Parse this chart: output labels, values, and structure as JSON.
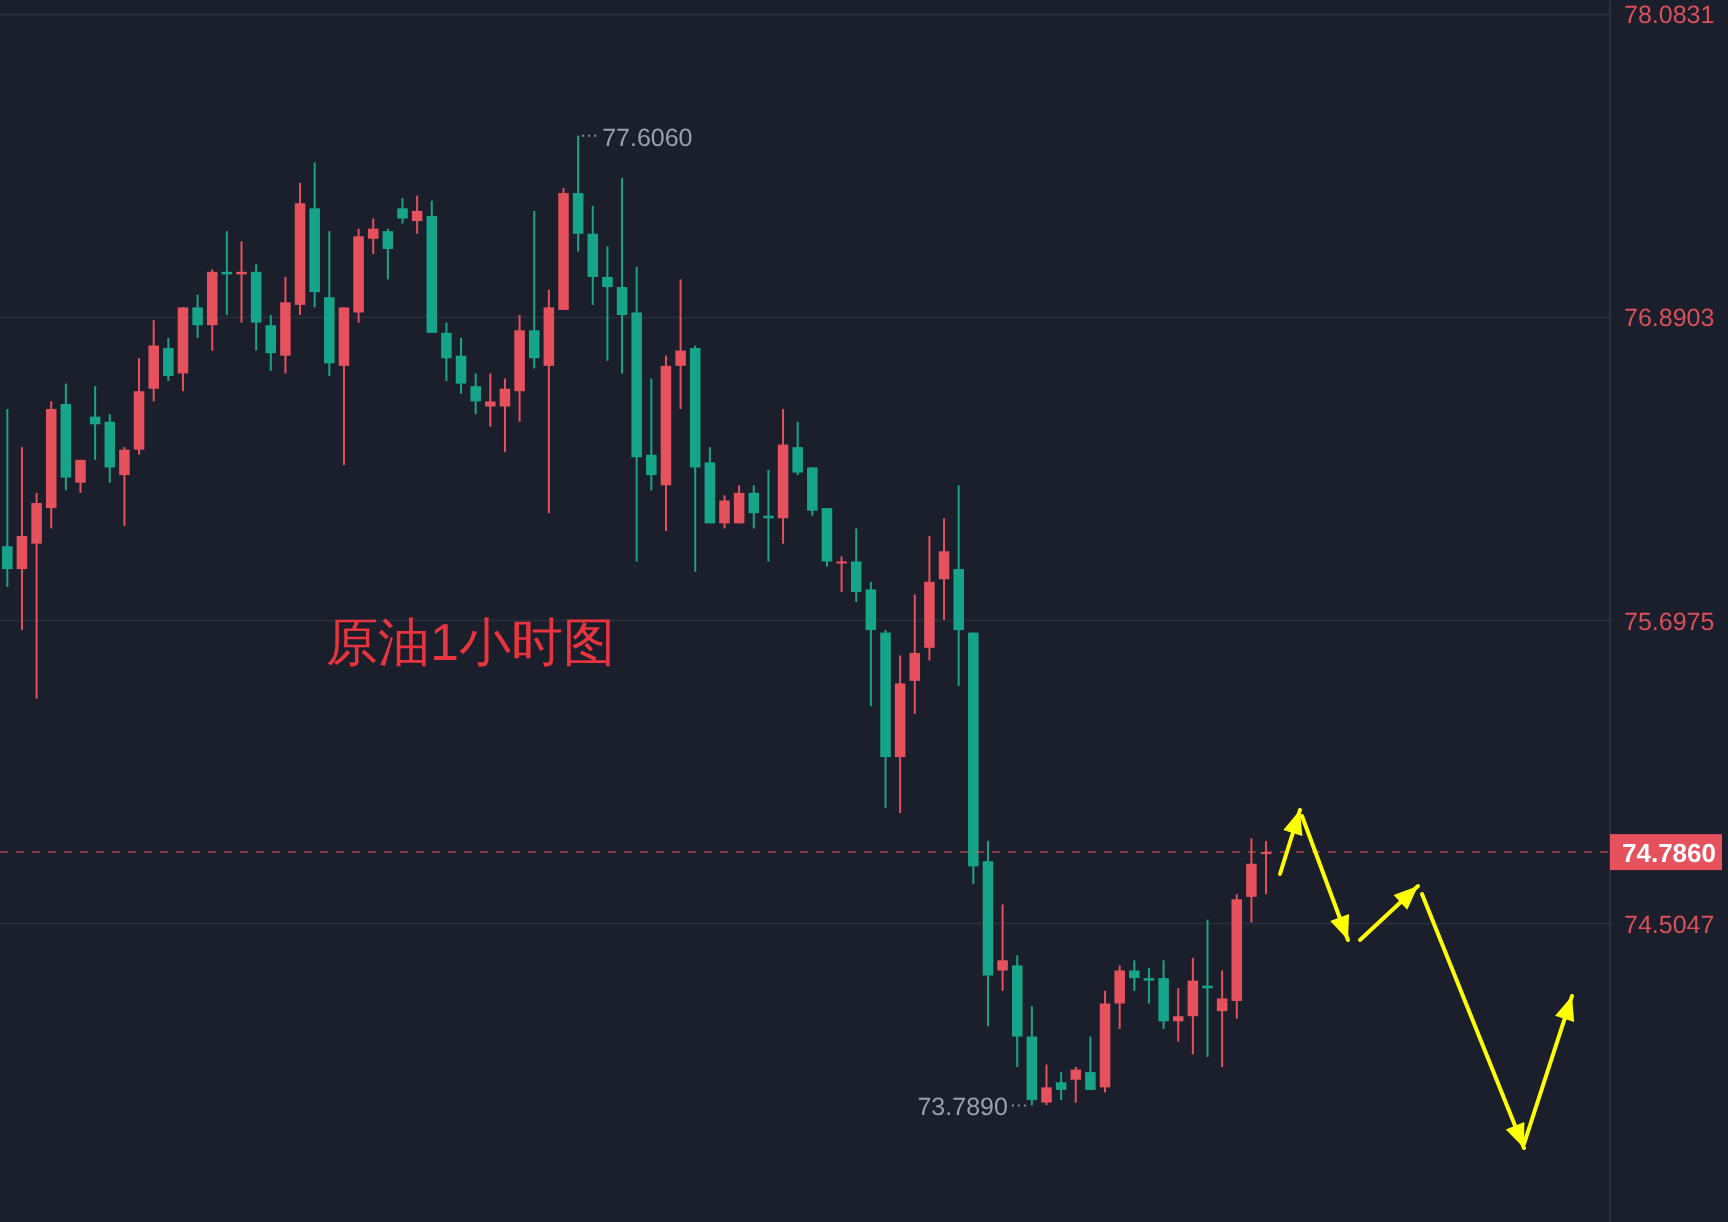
{
  "chart_data": {
    "type": "candlestick",
    "categories": [
      null,
      null,
      null,
      null,
      null,
      null,
      null,
      null,
      null,
      null,
      null,
      null,
      null,
      null,
      null,
      null,
      null,
      null,
      null,
      null,
      null,
      null,
      null,
      null,
      null,
      null,
      null,
      null,
      null,
      null,
      null,
      null,
      null,
      null,
      null,
      null,
      null,
      null,
      null,
      null,
      null,
      null,
      null,
      null,
      null,
      null,
      null,
      null,
      null,
      null,
      null,
      null,
      null,
      null,
      null,
      null,
      null,
      null,
      null,
      null,
      null,
      null,
      null,
      null,
      null,
      null,
      null,
      null,
      null,
      null,
      null,
      null,
      null,
      null,
      null,
      null,
      null,
      null,
      null,
      null,
      null,
      null,
      null,
      null,
      null,
      null,
      null,
      null,
      null,
      null,
      null,
      null,
      null,
      null,
      null,
      null,
      null,
      null,
      null,
      null,
      null,
      null,
      null,
      null,
      null,
      null,
      null,
      null,
      null,
      null
    ],
    "ohlc": [
      [
        75.99,
        76.53,
        75.83,
        75.9
      ],
      [
        75.9,
        76.38,
        75.66,
        76.03
      ],
      [
        76.0,
        76.2,
        75.39,
        76.16
      ],
      [
        76.14,
        76.56,
        76.06,
        76.53
      ],
      [
        76.55,
        76.63,
        76.21,
        76.26
      ],
      [
        76.24,
        76.33,
        76.2,
        76.33
      ],
      [
        76.5,
        76.62,
        76.33,
        76.47
      ],
      [
        76.48,
        76.51,
        76.24,
        76.3
      ],
      [
        76.27,
        76.38,
        76.07,
        76.37
      ],
      [
        76.37,
        76.73,
        76.35,
        76.6
      ],
      [
        76.61,
        76.88,
        76.56,
        76.78
      ],
      [
        76.77,
        76.81,
        76.64,
        76.66
      ],
      [
        76.67,
        76.93,
        76.6,
        76.93
      ],
      [
        76.93,
        76.98,
        76.81,
        76.86
      ],
      [
        76.86,
        77.08,
        76.76,
        77.07
      ],
      [
        77.07,
        77.23,
        76.9,
        77.06
      ],
      [
        77.06,
        77.19,
        76.87,
        77.07
      ],
      [
        77.07,
        77.1,
        76.76,
        76.87
      ],
      [
        76.86,
        76.9,
        76.68,
        76.75
      ],
      [
        76.74,
        77.05,
        76.67,
        76.95
      ],
      [
        76.94,
        77.42,
        76.9,
        77.34
      ],
      [
        77.32,
        77.5,
        76.93,
        76.99
      ],
      [
        76.97,
        77.23,
        76.66,
        76.71
      ],
      [
        76.7,
        76.93,
        76.31,
        76.93
      ],
      [
        76.91,
        77.24,
        76.87,
        77.21
      ],
      [
        77.2,
        77.28,
        77.14,
        77.24
      ],
      [
        77.23,
        77.24,
        77.04,
        77.16
      ],
      [
        77.32,
        77.36,
        77.26,
        77.28
      ],
      [
        77.27,
        77.37,
        77.22,
        77.31
      ],
      [
        77.29,
        77.35,
        76.83,
        76.83
      ],
      [
        76.83,
        76.87,
        76.64,
        76.73
      ],
      [
        76.74,
        76.81,
        76.59,
        76.63
      ],
      [
        76.62,
        76.67,
        76.51,
        76.56
      ],
      [
        76.54,
        76.67,
        76.46,
        76.56
      ],
      [
        76.54,
        76.65,
        76.36,
        76.61
      ],
      [
        76.6,
        76.9,
        76.48,
        76.84
      ],
      [
        76.84,
        77.31,
        76.69,
        76.73
      ],
      [
        76.7,
        77.0,
        76.12,
        76.93
      ],
      [
        76.92,
        77.4,
        76.92,
        77.38
      ],
      [
        77.38,
        77.606,
        77.15,
        77.22
      ],
      [
        77.22,
        77.33,
        76.94,
        77.05
      ],
      [
        77.05,
        77.17,
        76.72,
        77.01
      ],
      [
        77.01,
        77.44,
        76.67,
        76.9
      ],
      [
        76.91,
        77.09,
        75.93,
        76.34
      ],
      [
        76.35,
        76.65,
        76.21,
        76.27
      ],
      [
        76.23,
        76.74,
        76.05,
        76.7
      ],
      [
        76.7,
        77.04,
        76.53,
        76.76
      ],
      [
        76.77,
        76.78,
        75.89,
        76.3
      ],
      [
        76.32,
        76.38,
        76.08,
        76.08
      ],
      [
        76.08,
        76.19,
        76.06,
        76.17
      ],
      [
        76.08,
        76.23,
        76.08,
        76.2
      ],
      [
        76.2,
        76.23,
        76.06,
        76.12
      ],
      [
        76.11,
        76.29,
        75.93,
        76.1
      ],
      [
        76.1,
        76.53,
        76.0,
        76.39
      ],
      [
        76.38,
        76.48,
        76.27,
        76.28
      ],
      [
        76.3,
        76.3,
        76.11,
        76.13
      ],
      [
        76.14,
        76.14,
        75.91,
        75.93
      ],
      [
        75.93,
        75.95,
        75.81,
        75.93
      ],
      [
        75.93,
        76.06,
        75.77,
        75.81
      ],
      [
        75.82,
        75.85,
        75.36,
        75.66
      ],
      [
        75.65,
        75.66,
        74.96,
        75.16
      ],
      [
        75.16,
        75.56,
        74.94,
        75.45
      ],
      [
        75.46,
        75.8,
        75.33,
        75.57
      ],
      [
        75.59,
        76.03,
        75.54,
        75.85
      ],
      [
        75.86,
        76.1,
        75.7,
        75.97
      ],
      [
        75.9,
        76.23,
        75.44,
        75.66
      ],
      [
        75.65,
        75.65,
        74.66,
        74.73
      ],
      [
        74.75,
        74.83,
        74.1,
        74.3
      ],
      [
        74.32,
        74.58,
        74.24,
        74.36
      ],
      [
        74.34,
        74.38,
        73.94,
        74.06
      ],
      [
        74.06,
        74.18,
        73.789,
        73.81
      ],
      [
        73.8,
        73.95,
        73.79,
        73.86
      ],
      [
        73.88,
        73.92,
        73.81,
        73.85
      ],
      [
        73.89,
        73.94,
        73.8,
        73.93
      ],
      [
        73.92,
        74.06,
        73.85,
        73.85
      ],
      [
        73.86,
        74.24,
        73.84,
        74.19
      ],
      [
        74.19,
        74.34,
        74.09,
        74.32
      ],
      [
        74.32,
        74.36,
        74.24,
        74.29
      ],
      [
        74.29,
        74.33,
        74.19,
        74.28
      ],
      [
        74.29,
        74.36,
        74.09,
        74.12
      ],
      [
        74.12,
        74.25,
        74.04,
        74.14
      ],
      [
        74.14,
        74.37,
        73.99,
        74.28
      ],
      [
        74.26,
        74.52,
        73.98,
        74.25
      ],
      [
        74.16,
        74.32,
        73.94,
        74.21
      ],
      [
        74.2,
        74.62,
        74.13,
        74.6
      ],
      [
        74.61,
        74.84,
        74.51,
        74.74
      ],
      [
        74.78,
        74.83,
        74.62,
        74.786
      ],
      null,
      null,
      null,
      null,
      null,
      null,
      null,
      null,
      null,
      null,
      null,
      null,
      null,
      null,
      null,
      null,
      null,
      null,
      null,
      null,
      null,
      null,
      null
    ],
    "colors": [
      "#16a589",
      "#e5515c",
      "#e5515c",
      "#e5515c",
      "#16a589",
      "#e5515c",
      "#16a589",
      "#16a589",
      "#e5515c",
      "#e5515c",
      "#e5515c",
      "#16a589",
      "#e5515c",
      "#16a589",
      "#e5515c",
      "#16a589",
      "#e5515c",
      "#16a589",
      "#16a589",
      "#e5515c",
      "#e5515c",
      "#16a589",
      "#16a589",
      "#e5515c",
      "#e5515c",
      "#e5515c",
      "#16a589",
      "#16a589",
      "#e5515c",
      "#16a589",
      "#16a589",
      "#16a589",
      "#16a589",
      "#e5515c",
      "#e5515c",
      "#e5515c",
      "#16a589",
      "#e5515c",
      "#e5515c",
      "#16a589",
      "#16a589",
      "#16a589",
      "#16a589",
      "#16a589",
      "#16a589",
      "#e5515c",
      "#e5515c",
      "#16a589",
      "#16a589",
      "#e5515c",
      "#e5515c",
      "#16a589",
      "#16a589",
      "#e5515c",
      "#16a589",
      "#16a589",
      "#16a589",
      "#e5515c",
      "#16a589",
      "#16a589",
      "#16a589",
      "#e5515c",
      "#e5515c",
      "#e5515c",
      "#e5515c",
      "#16a589",
      "#16a589",
      "#16a589",
      "#e5515c",
      "#16a589",
      "#16a589",
      "#e5515c",
      "#16a589",
      "#e5515c",
      "#16a589",
      "#e5515c",
      "#e5515c",
      "#16a589",
      "#16a589",
      "#16a589",
      "#e5515c",
      "#e5515c",
      "#16a589",
      "#e5515c",
      "#e5515c",
      "#e5515c",
      "#e5515c",
      null,
      null,
      null,
      null,
      null,
      null,
      null,
      null,
      null,
      null,
      null,
      null,
      null,
      null,
      null,
      null,
      null,
      null,
      null,
      null,
      null,
      null,
      null
    ],
    "ylim": [
      73.33,
      78.14
    ],
    "yticks": [
      78.0831,
      76.8903,
      75.6975,
      74.5047
    ],
    "grid": "y",
    "ref_lines": [
      {
        "axis": "y",
        "value": 74.786,
        "label": "74.7860",
        "color": "#e5515c",
        "line_style": "dashed"
      }
    ],
    "annotations": [
      "原油1小时图",
      "77.6060",
      "73.7890"
    ]
  }
}
